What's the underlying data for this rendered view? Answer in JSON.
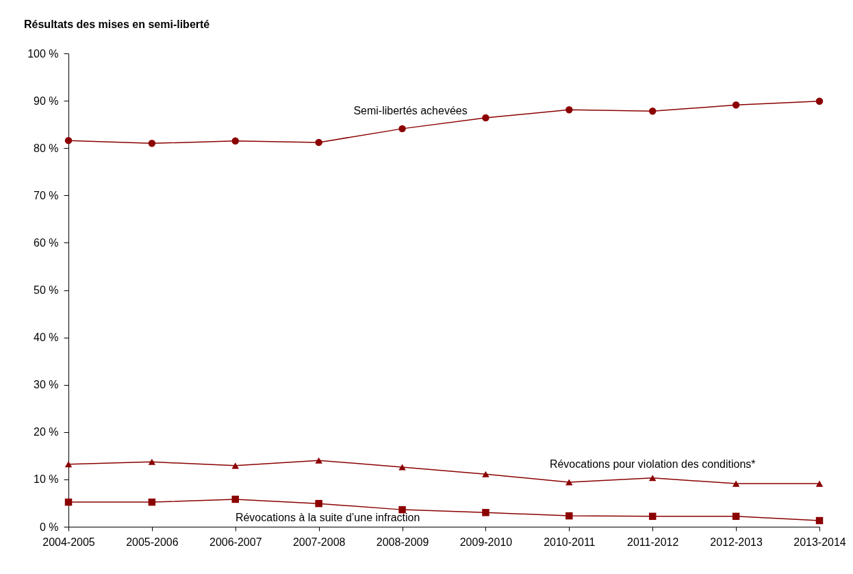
{
  "chart_data": {
    "type": "line",
    "title": "Résultats des mises en semi-liberté",
    "categories": [
      "2004-2005",
      "2005-2006",
      "2006-2007",
      "2007-2008",
      "2008-2009",
      "2009-2010",
      "2010-2011",
      "2011-2012",
      "2012-2013",
      "2013-2014"
    ],
    "series": [
      {
        "name": "Semi-libertés achevées",
        "color": "#8b0000",
        "marker": "circle",
        "values": [
          81.6,
          81.0,
          81.5,
          81.2,
          84.1,
          86.4,
          88.1,
          87.8,
          89.1,
          89.9
        ]
      },
      {
        "name": "Révocations pour violation des conditions*",
        "color": "#8b0000",
        "marker": "triangle",
        "values": [
          13.2,
          13.7,
          12.9,
          14.0,
          12.6,
          11.1,
          9.4,
          10.3,
          9.1,
          9.1
        ]
      },
      {
        "name": "Révocations à la suite d’une infraction",
        "color": "#8b0000",
        "marker": "square",
        "values": [
          5.2,
          5.2,
          5.8,
          4.9,
          3.6,
          3.0,
          2.3,
          2.2,
          2.2,
          1.3
        ]
      }
    ],
    "ylim": [
      0,
      100
    ],
    "yticks": [
      {
        "value": 0,
        "label": "0 %"
      },
      {
        "value": 10,
        "label": "10 %"
      },
      {
        "value": 20,
        "label": "20 %"
      },
      {
        "value": 30,
        "label": "30 %"
      },
      {
        "value": 40,
        "label": "40 %"
      },
      {
        "value": 50,
        "label": "50 %"
      },
      {
        "value": 60,
        "label": "60 %"
      },
      {
        "value": 70,
        "label": "70 %"
      },
      {
        "value": 80,
        "label": "80 %"
      },
      {
        "value": 90,
        "label": "90 %"
      },
      {
        "value": 100,
        "label": "100 %"
      }
    ],
    "grid": false,
    "legend": false,
    "line_style": "solid"
  }
}
